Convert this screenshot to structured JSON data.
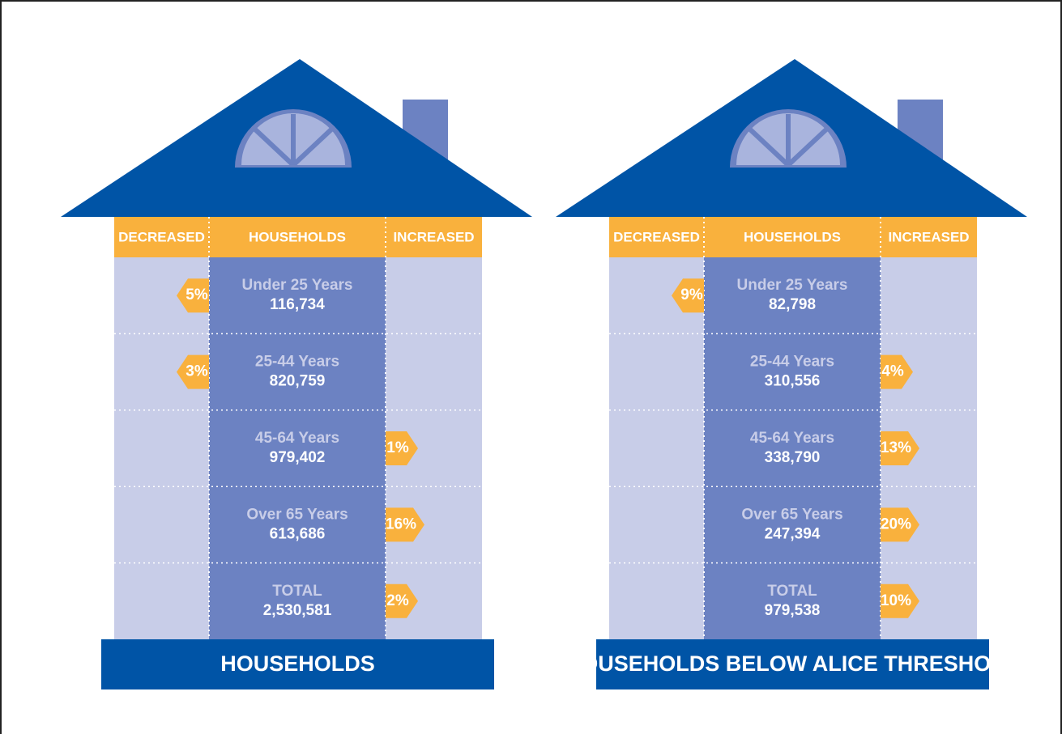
{
  "houses": [
    {
      "headers": [
        "DECREASED",
        "HOUSEHOLDS",
        "INCREASED"
      ],
      "rows": [
        {
          "label": "Under 25 Years",
          "value": "116,734",
          "decreased": "5%"
        },
        {
          "label": "25-44 Years",
          "value": "820,759",
          "decreased": "3%"
        },
        {
          "label": "45-64 Years",
          "value": "979,402",
          "increased": "1%"
        },
        {
          "label": "Over 65 Years",
          "value": "613,686",
          "increased": "16%"
        },
        {
          "label": "TOTAL",
          "value": "2,530,581",
          "increased": "2%"
        }
      ],
      "footer": "HOUSEHOLDS"
    },
    {
      "headers": [
        "DECREASED",
        "HOUSEHOLDS",
        "INCREASED"
      ],
      "rows": [
        {
          "label": "Under 25 Years",
          "value": "82,798",
          "decreased": "9%"
        },
        {
          "label": "25-44 Years",
          "value": "310,556",
          "increased": "4%"
        },
        {
          "label": "45-64 Years",
          "value": "338,790",
          "increased": "13%"
        },
        {
          "label": "Over 65 Years",
          "value": "247,394",
          "increased": "20%"
        },
        {
          "label": "TOTAL",
          "value": "979,538",
          "increased": "10%"
        }
      ],
      "footer": "HOUSEHOLDS BELOW ALICE THRESHOLD"
    }
  ]
}
